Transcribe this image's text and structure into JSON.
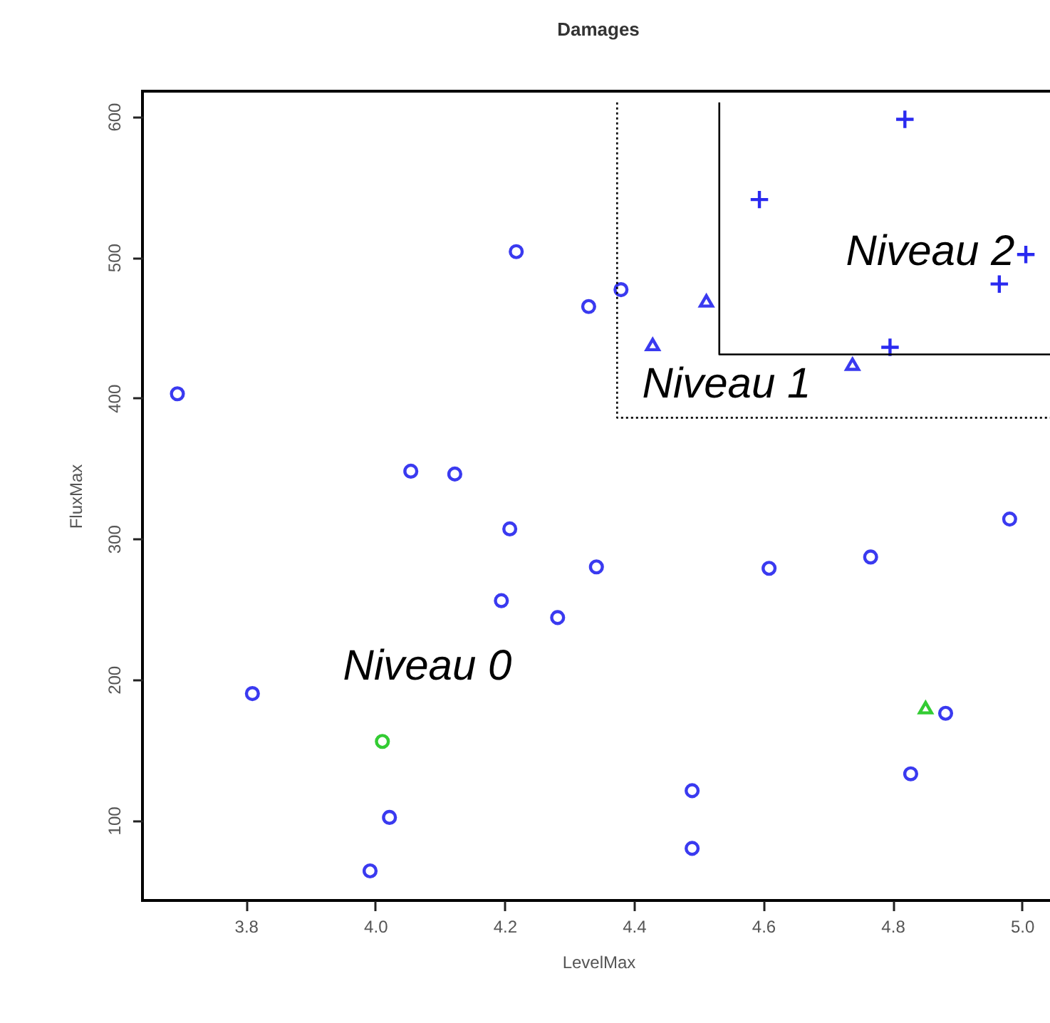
{
  "chart_data": {
    "type": "scatter",
    "title": "Damages",
    "xlabel": "LevelMax",
    "ylabel": "FluxMax",
    "xlim": [
      3.64,
      5.05
    ],
    "ylim": [
      43,
      618
    ],
    "xticks": [
      3.8,
      {
        "value": 4,
        "label": "4.0"
      },
      4.2,
      4.4,
      4.6,
      4.8,
      {
        "value": 5,
        "label": "5.0"
      }
    ],
    "yticks": [
      100,
      200,
      300,
      400,
      500,
      600
    ],
    "grid": false,
    "series": [
      {
        "marker": "circle",
        "color": "#3a3af0",
        "x": [
          3.694,
          4.218,
          4.33,
          4.38,
          4.055,
          4.123,
          4.208,
          4.342,
          4.195,
          4.282,
          3.81,
          4.022,
          3.992,
          4.49,
          4.49,
          4.609,
          4.766,
          4.828,
          4.882,
          4.981
        ],
        "values": [
          403,
          504,
          465,
          477,
          348,
          346,
          307,
          280,
          256,
          244,
          190,
          102,
          64,
          121,
          80,
          279,
          287,
          133,
          176,
          314
        ]
      },
      {
        "marker": "triangle",
        "color": "#3a3af0",
        "x": [
          4.512,
          4.429,
          4.738
        ],
        "values": [
          469,
          438,
          424
        ]
      },
      {
        "marker": "cross",
        "color": "#2a2af0",
        "x": [
          4.819,
          4.594,
          5.006,
          4.965,
          4.796
        ],
        "values": [
          598,
          541,
          502,
          481,
          436
        ]
      },
      {
        "marker": "circle",
        "color": "#33cc33",
        "x": [
          4.011
        ],
        "values": [
          156
        ]
      },
      {
        "marker": "triangle",
        "color": "#33cc33",
        "x": [
          4.851
        ],
        "values": [
          180
        ]
      },
      {
        "type": "line",
        "line_style": "dotted",
        "color": "#000000",
        "x": [
          4.374,
          4.374,
          5.05
        ],
        "values": [
          610,
          386,
          386
        ]
      },
      {
        "type": "line",
        "line_style": "solid",
        "color": "#000000",
        "x": [
          4.532,
          4.532,
          5.05
        ],
        "values": [
          610,
          431,
          431
        ]
      }
    ],
    "annotations": [
      "Niveau 0",
      "Niveau 1",
      "Niveau 2"
    ]
  }
}
